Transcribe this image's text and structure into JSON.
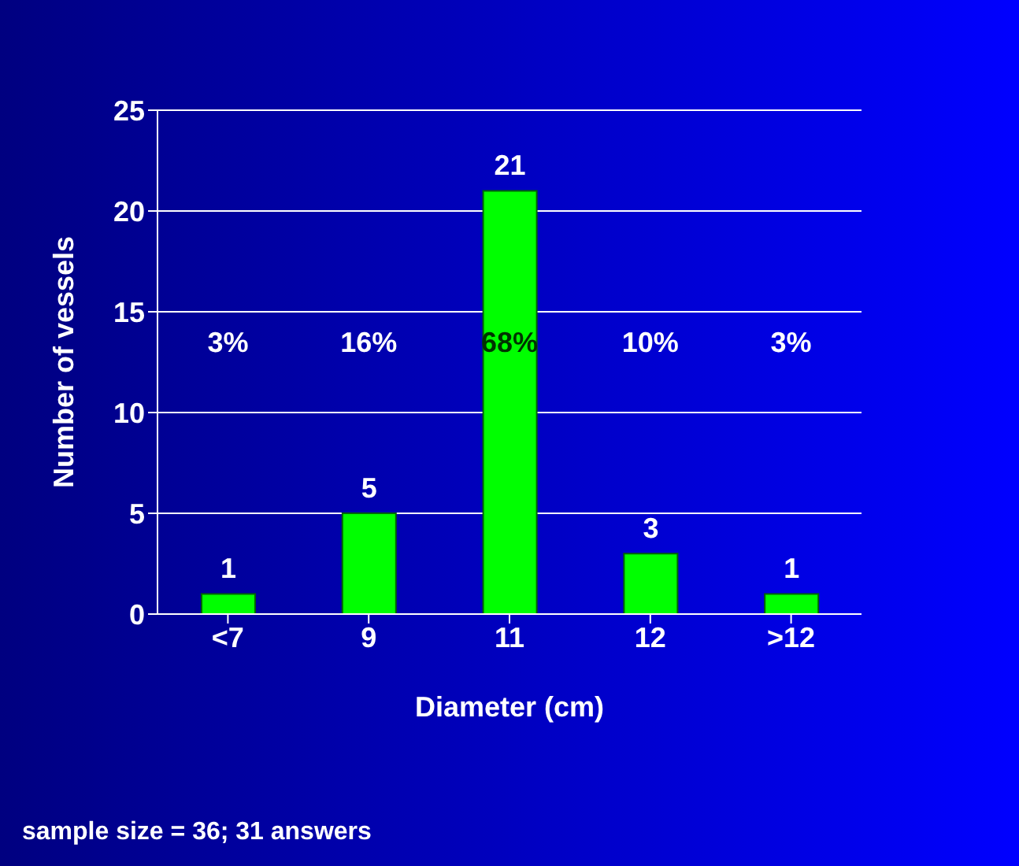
{
  "chart_data": {
    "type": "bar",
    "xlabel": "Diameter (cm)",
    "ylabel": "Number of vessels",
    "categories": [
      "<7",
      "9",
      "11",
      "12",
      ">12"
    ],
    "values": [
      1,
      5,
      21,
      3,
      1
    ],
    "color": "#00ff00",
    "data_labels": true,
    "ylim": [
      0,
      25
    ],
    "yticks": [
      0,
      5,
      10,
      15,
      20,
      25
    ],
    "grid": "y",
    "annotations": [
      "3%",
      "16%",
      "68%",
      "10%",
      "3%",
      "sample size = 36; 31 answers"
    ]
  }
}
